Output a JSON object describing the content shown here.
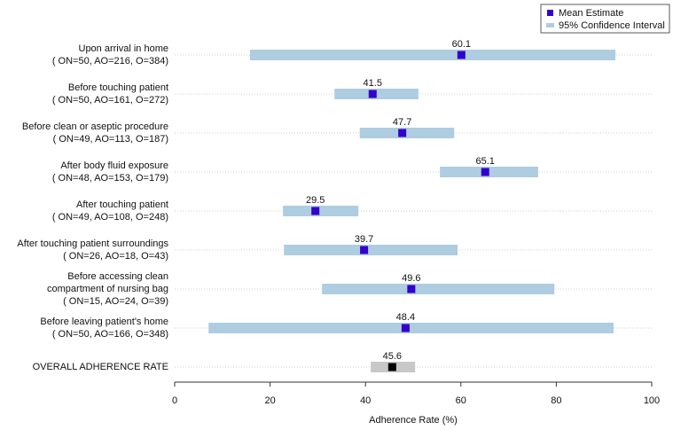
{
  "chart_data": {
    "type": "forest",
    "xlabel": "Adherence Rate (%)",
    "xlim": [
      0,
      100
    ],
    "xticks": [
      0,
      20,
      40,
      60,
      80,
      100
    ],
    "categories": [
      [
        "Upon arrival in home",
        "( ON=50, AO=216, O=384)"
      ],
      [
        "Before touching patient",
        "( ON=50, AO=161, O=272)"
      ],
      [
        "Before clean or aseptic procedure",
        "( ON=49, AO=113, O=187)"
      ],
      [
        "After body fluid exposure",
        "( ON=48, AO=153, O=179)"
      ],
      [
        "After touching patient",
        "( ON=49, AO=108, O=248)"
      ],
      [
        "After touching patient surroundings",
        "( ON=26, AO=18, O=43)"
      ],
      [
        "Before accessing clean",
        "compartment of nursing bag",
        "( ON=15, AO=24, O=39)"
      ],
      [
        "Before leaving patient's home",
        "( ON=50, AO=166, O=348)"
      ]
    ],
    "series": [
      {
        "name": "Mean Estimate",
        "color": "#3300cc",
        "values": [
          60.1,
          41.5,
          47.7,
          65.1,
          29.5,
          39.7,
          49.6,
          48.4
        ]
      },
      {
        "name": "95% Confidence Interval",
        "color": "#aecde0",
        "lower": [
          15.8,
          33.5,
          38.8,
          55.6,
          22.7,
          22.9,
          30.9,
          7.1
        ],
        "upper": [
          92.4,
          51.1,
          58.6,
          76.2,
          38.5,
          59.3,
          79.6,
          92.0
        ]
      }
    ],
    "overall": {
      "label": "OVERALL ADHERENCE RATE",
      "value": 45.6,
      "lower": 41.1,
      "upper": 50.4,
      "color": "#c8c8c8",
      "marker_color": "#000000"
    }
  }
}
